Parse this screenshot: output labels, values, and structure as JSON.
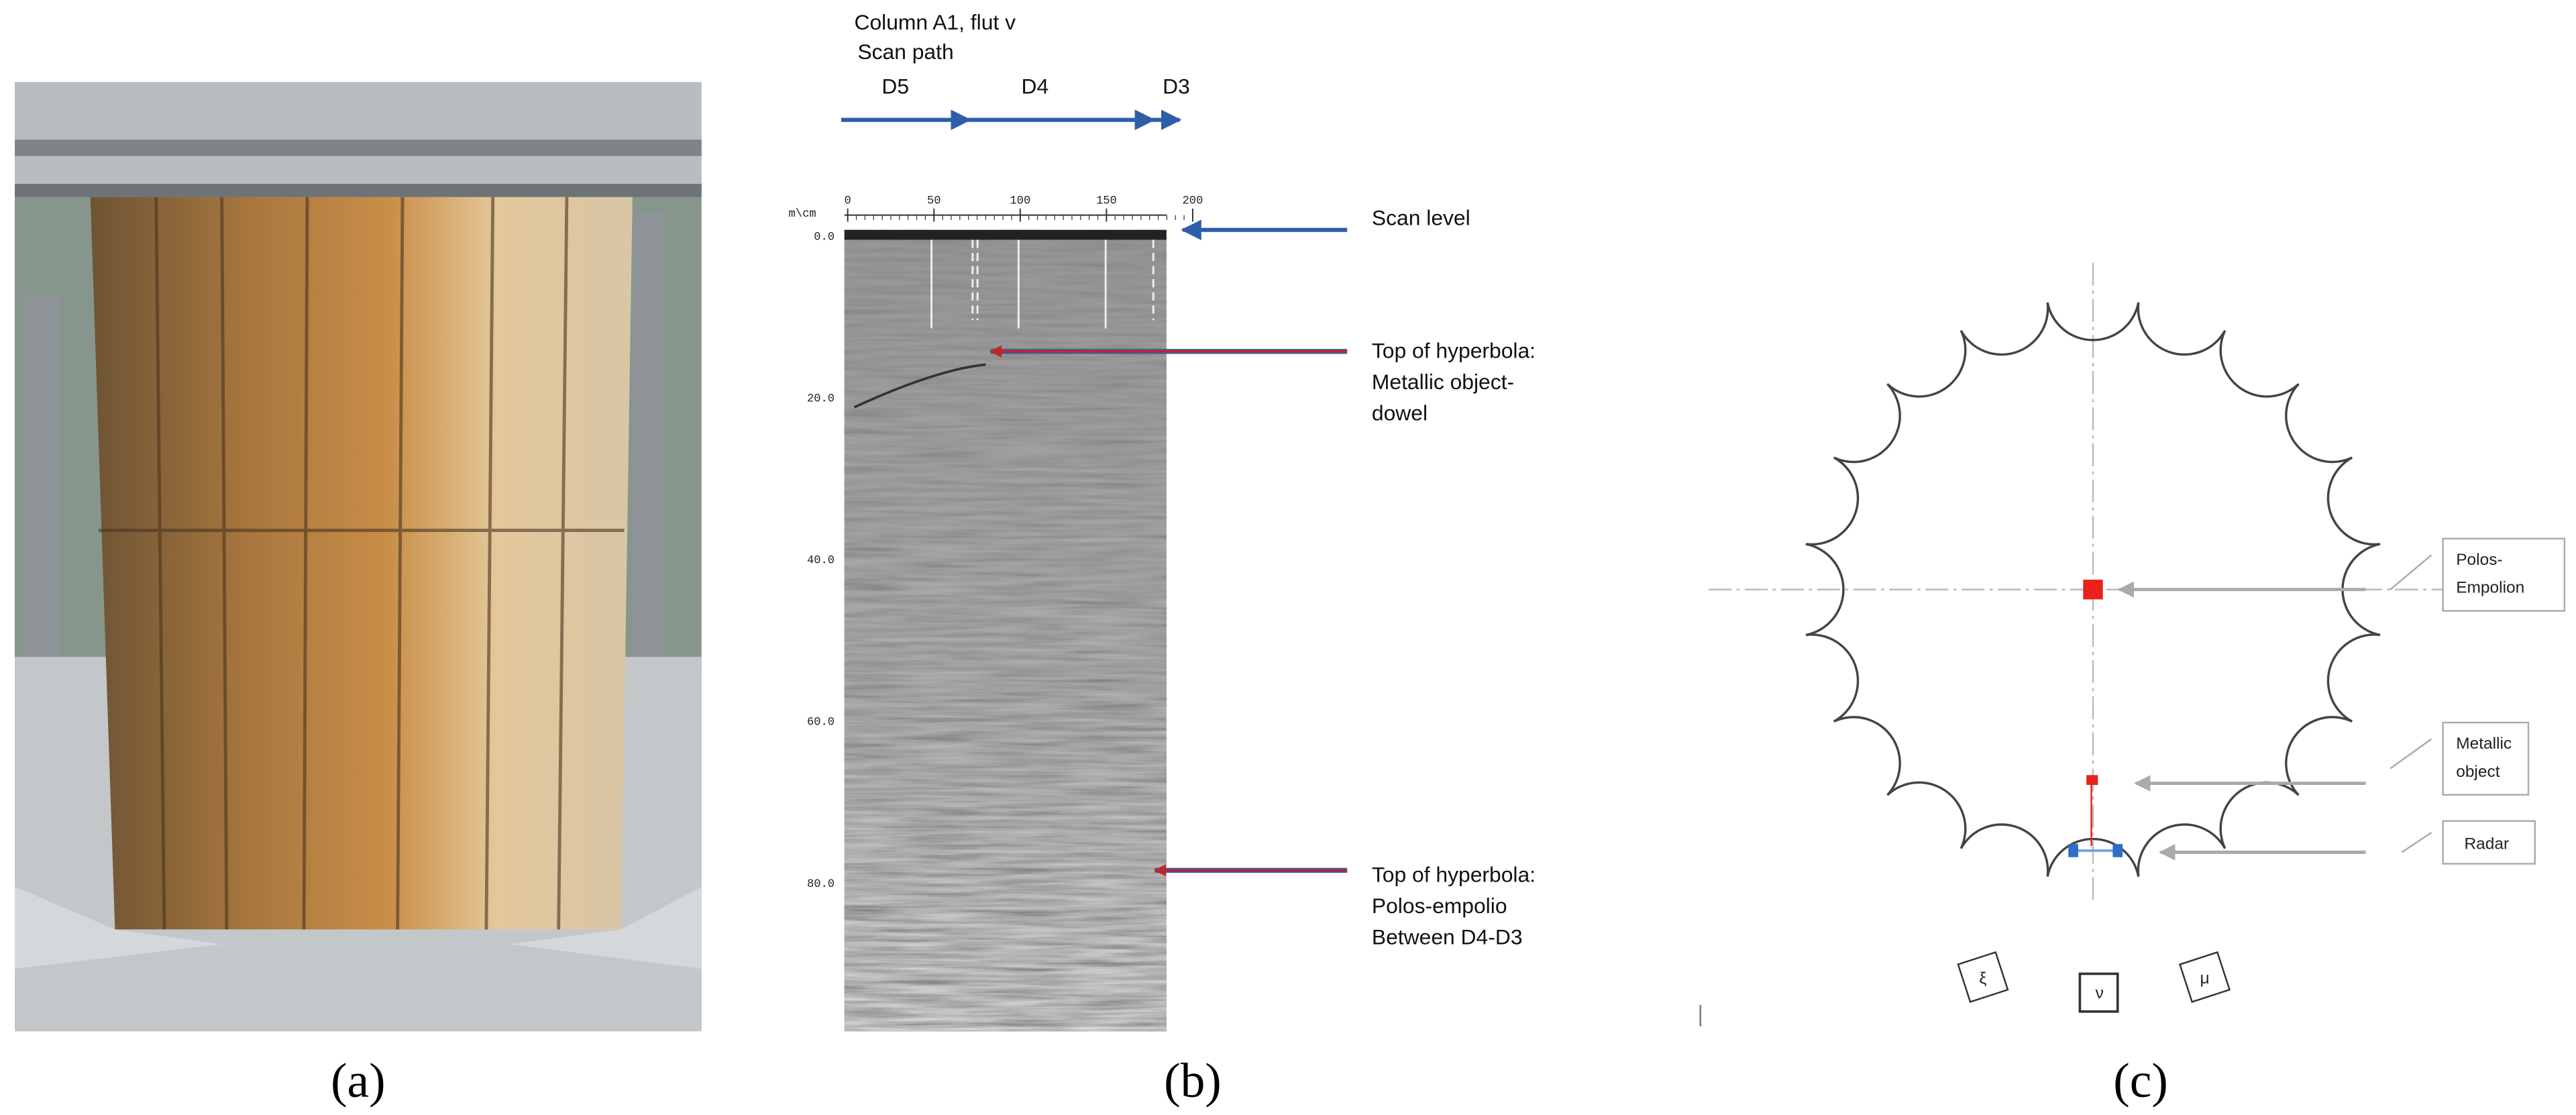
{
  "panel_a": {
    "label": "(a)"
  },
  "panel_b": {
    "label": "(b)",
    "header": [
      "Column A1, flut v",
      "Scan path"
    ],
    "segments": [
      "D5",
      "D4",
      "D3"
    ],
    "axis_unit": "m\\cm",
    "x_ticks": [
      "0",
      "50",
      "100",
      "150",
      "200"
    ],
    "y_ticks": [
      "0.0",
      "20.0",
      "40.0",
      "60.0",
      "80.0"
    ],
    "scan_level": "Scan level",
    "notes": [
      [
        "Top of hyperbola:",
        "Metallic object-",
        "dowel"
      ],
      [
        "Top of hyperbola:",
        "Polos-empolio",
        "Between D4-D3"
      ]
    ]
  },
  "panel_c": {
    "label": "(c)",
    "callouts": [
      [
        "Polos-",
        "Empolion"
      ],
      [
        "Metallic",
        "object"
      ],
      [
        "Radar"
      ]
    ],
    "flutes": [
      "ξ",
      "ν",
      "μ"
    ]
  }
}
